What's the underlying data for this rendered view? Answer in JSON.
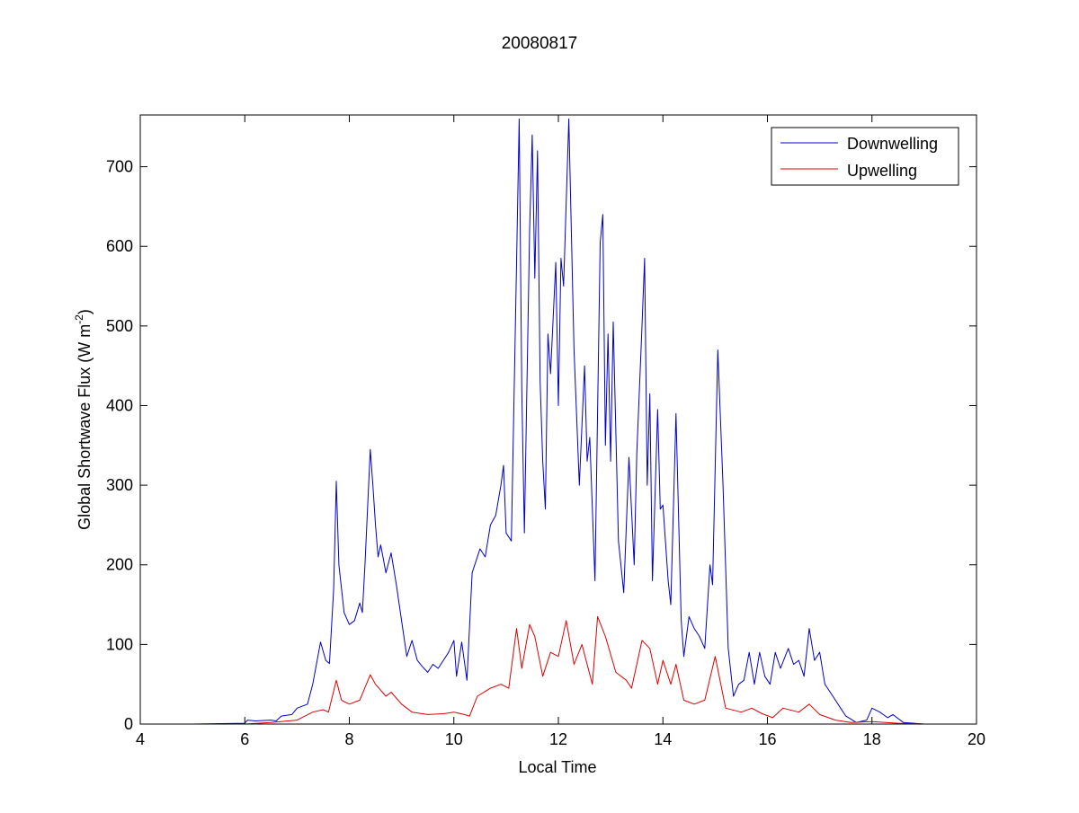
{
  "chart_data": {
    "type": "line",
    "title": "20080817",
    "xlabel": "Local Time",
    "ylabel_main": "Global Shortwave Flux (W m",
    "ylabel_sup": "-2",
    "ylabel_close": ")",
    "xlim": [
      4,
      20
    ],
    "ylim": [
      0,
      765
    ],
    "xticks": [
      4,
      6,
      8,
      10,
      12,
      14,
      16,
      18,
      20
    ],
    "yticks": [
      0,
      100,
      200,
      300,
      400,
      500,
      600,
      700
    ],
    "legend_position": "top-right",
    "grid": false,
    "series": [
      {
        "name": "Downwelling",
        "color": "#0000cc",
        "points": [
          [
            4.2,
            0
          ],
          [
            5.0,
            0
          ],
          [
            6.0,
            1
          ],
          [
            6.05,
            5
          ],
          [
            6.2,
            4
          ],
          [
            6.5,
            5
          ],
          [
            6.6,
            4
          ],
          [
            6.7,
            10
          ],
          [
            6.9,
            12
          ],
          [
            7.0,
            20
          ],
          [
            7.2,
            25
          ],
          [
            7.3,
            50
          ],
          [
            7.45,
            103
          ],
          [
            7.55,
            80
          ],
          [
            7.62,
            76
          ],
          [
            7.7,
            170
          ],
          [
            7.75,
            305
          ],
          [
            7.8,
            200
          ],
          [
            7.9,
            140
          ],
          [
            8.0,
            125
          ],
          [
            8.1,
            130
          ],
          [
            8.2,
            152
          ],
          [
            8.25,
            140
          ],
          [
            8.3,
            200
          ],
          [
            8.4,
            345
          ],
          [
            8.45,
            300
          ],
          [
            8.5,
            250
          ],
          [
            8.55,
            210
          ],
          [
            8.6,
            225
          ],
          [
            8.7,
            190
          ],
          [
            8.8,
            215
          ],
          [
            8.9,
            175
          ],
          [
            9.0,
            130
          ],
          [
            9.1,
            85
          ],
          [
            9.2,
            105
          ],
          [
            9.3,
            80
          ],
          [
            9.4,
            72
          ],
          [
            9.5,
            65
          ],
          [
            9.6,
            75
          ],
          [
            9.7,
            70
          ],
          [
            9.8,
            80
          ],
          [
            9.9,
            90
          ],
          [
            10.0,
            105
          ],
          [
            10.05,
            60
          ],
          [
            10.15,
            103
          ],
          [
            10.25,
            55
          ],
          [
            10.35,
            190
          ],
          [
            10.5,
            220
          ],
          [
            10.6,
            210
          ],
          [
            10.7,
            250
          ],
          [
            10.8,
            262
          ],
          [
            10.9,
            300
          ],
          [
            10.95,
            325
          ],
          [
            11.0,
            240
          ],
          [
            11.1,
            230
          ],
          [
            11.2,
            580
          ],
          [
            11.25,
            760
          ],
          [
            11.3,
            420
          ],
          [
            11.35,
            240
          ],
          [
            11.45,
            620
          ],
          [
            11.5,
            740
          ],
          [
            11.55,
            560
          ],
          [
            11.6,
            720
          ],
          [
            11.65,
            430
          ],
          [
            11.7,
            330
          ],
          [
            11.75,
            270
          ],
          [
            11.8,
            490
          ],
          [
            11.85,
            440
          ],
          [
            11.95,
            580
          ],
          [
            12.0,
            400
          ],
          [
            12.05,
            585
          ],
          [
            12.1,
            550
          ],
          [
            12.2,
            760
          ],
          [
            12.3,
            470
          ],
          [
            12.4,
            300
          ],
          [
            12.5,
            450
          ],
          [
            12.55,
            330
          ],
          [
            12.6,
            360
          ],
          [
            12.7,
            180
          ],
          [
            12.8,
            605
          ],
          [
            12.85,
            640
          ],
          [
            12.9,
            350
          ],
          [
            12.95,
            490
          ],
          [
            13.0,
            330
          ],
          [
            13.05,
            505
          ],
          [
            13.15,
            230
          ],
          [
            13.25,
            165
          ],
          [
            13.35,
            335
          ],
          [
            13.45,
            200
          ],
          [
            13.5,
            340
          ],
          [
            13.6,
            500
          ],
          [
            13.65,
            585
          ],
          [
            13.7,
            300
          ],
          [
            13.75,
            415
          ],
          [
            13.8,
            180
          ],
          [
            13.9,
            395
          ],
          [
            13.95,
            270
          ],
          [
            14.0,
            275
          ],
          [
            14.1,
            180
          ],
          [
            14.15,
            150
          ],
          [
            14.25,
            390
          ],
          [
            14.35,
            130
          ],
          [
            14.4,
            85
          ],
          [
            14.5,
            135
          ],
          [
            14.6,
            120
          ],
          [
            14.7,
            110
          ],
          [
            14.8,
            95
          ],
          [
            14.9,
            200
          ],
          [
            14.95,
            175
          ],
          [
            15.05,
            470
          ],
          [
            15.15,
            300
          ],
          [
            15.25,
            95
          ],
          [
            15.35,
            35
          ],
          [
            15.45,
            50
          ],
          [
            15.55,
            55
          ],
          [
            15.65,
            90
          ],
          [
            15.75,
            50
          ],
          [
            15.85,
            90
          ],
          [
            15.95,
            60
          ],
          [
            16.05,
            50
          ],
          [
            16.15,
            90
          ],
          [
            16.25,
            70
          ],
          [
            16.4,
            95
          ],
          [
            16.5,
            75
          ],
          [
            16.6,
            80
          ],
          [
            16.7,
            60
          ],
          [
            16.8,
            120
          ],
          [
            16.9,
            80
          ],
          [
            17.0,
            90
          ],
          [
            17.1,
            50
          ],
          [
            17.2,
            40
          ],
          [
            17.3,
            30
          ],
          [
            17.4,
            20
          ],
          [
            17.5,
            10
          ],
          [
            17.7,
            2
          ],
          [
            17.9,
            5
          ],
          [
            18.0,
            20
          ],
          [
            18.15,
            15
          ],
          [
            18.3,
            8
          ],
          [
            18.4,
            12
          ],
          [
            18.6,
            2
          ],
          [
            19.0,
            0
          ],
          [
            19.8,
            0
          ]
        ]
      },
      {
        "name": "Upwelling",
        "color": "#dd0000",
        "points": [
          [
            4.2,
            0
          ],
          [
            5.0,
            0
          ],
          [
            6.0,
            0
          ],
          [
            6.5,
            2
          ],
          [
            7.0,
            5
          ],
          [
            7.3,
            15
          ],
          [
            7.5,
            18
          ],
          [
            7.6,
            15
          ],
          [
            7.75,
            55
          ],
          [
            7.85,
            30
          ],
          [
            8.0,
            25
          ],
          [
            8.2,
            30
          ],
          [
            8.4,
            62
          ],
          [
            8.5,
            50
          ],
          [
            8.7,
            35
          ],
          [
            8.8,
            40
          ],
          [
            9.0,
            25
          ],
          [
            9.2,
            15
          ],
          [
            9.5,
            12
          ],
          [
            9.8,
            13
          ],
          [
            10.0,
            15
          ],
          [
            10.2,
            12
          ],
          [
            10.3,
            10
          ],
          [
            10.45,
            35
          ],
          [
            10.7,
            45
          ],
          [
            10.9,
            50
          ],
          [
            11.05,
            45
          ],
          [
            11.2,
            120
          ],
          [
            11.3,
            70
          ],
          [
            11.45,
            125
          ],
          [
            11.55,
            110
          ],
          [
            11.7,
            60
          ],
          [
            11.85,
            90
          ],
          [
            12.0,
            85
          ],
          [
            12.15,
            130
          ],
          [
            12.3,
            75
          ],
          [
            12.45,
            100
          ],
          [
            12.65,
            50
          ],
          [
            12.75,
            135
          ],
          [
            12.9,
            110
          ],
          [
            13.1,
            65
          ],
          [
            13.3,
            55
          ],
          [
            13.4,
            45
          ],
          [
            13.6,
            105
          ],
          [
            13.75,
            95
          ],
          [
            13.9,
            50
          ],
          [
            14.0,
            80
          ],
          [
            14.15,
            50
          ],
          [
            14.25,
            75
          ],
          [
            14.4,
            30
          ],
          [
            14.6,
            25
          ],
          [
            14.8,
            30
          ],
          [
            15.0,
            85
          ],
          [
            15.2,
            20
          ],
          [
            15.5,
            15
          ],
          [
            15.7,
            20
          ],
          [
            15.9,
            13
          ],
          [
            16.1,
            8
          ],
          [
            16.3,
            20
          ],
          [
            16.6,
            15
          ],
          [
            16.8,
            25
          ],
          [
            17.0,
            12
          ],
          [
            17.3,
            5
          ],
          [
            17.6,
            2
          ],
          [
            18.0,
            3
          ],
          [
            18.5,
            1
          ],
          [
            19.0,
            0
          ],
          [
            19.8,
            0
          ]
        ]
      }
    ]
  }
}
